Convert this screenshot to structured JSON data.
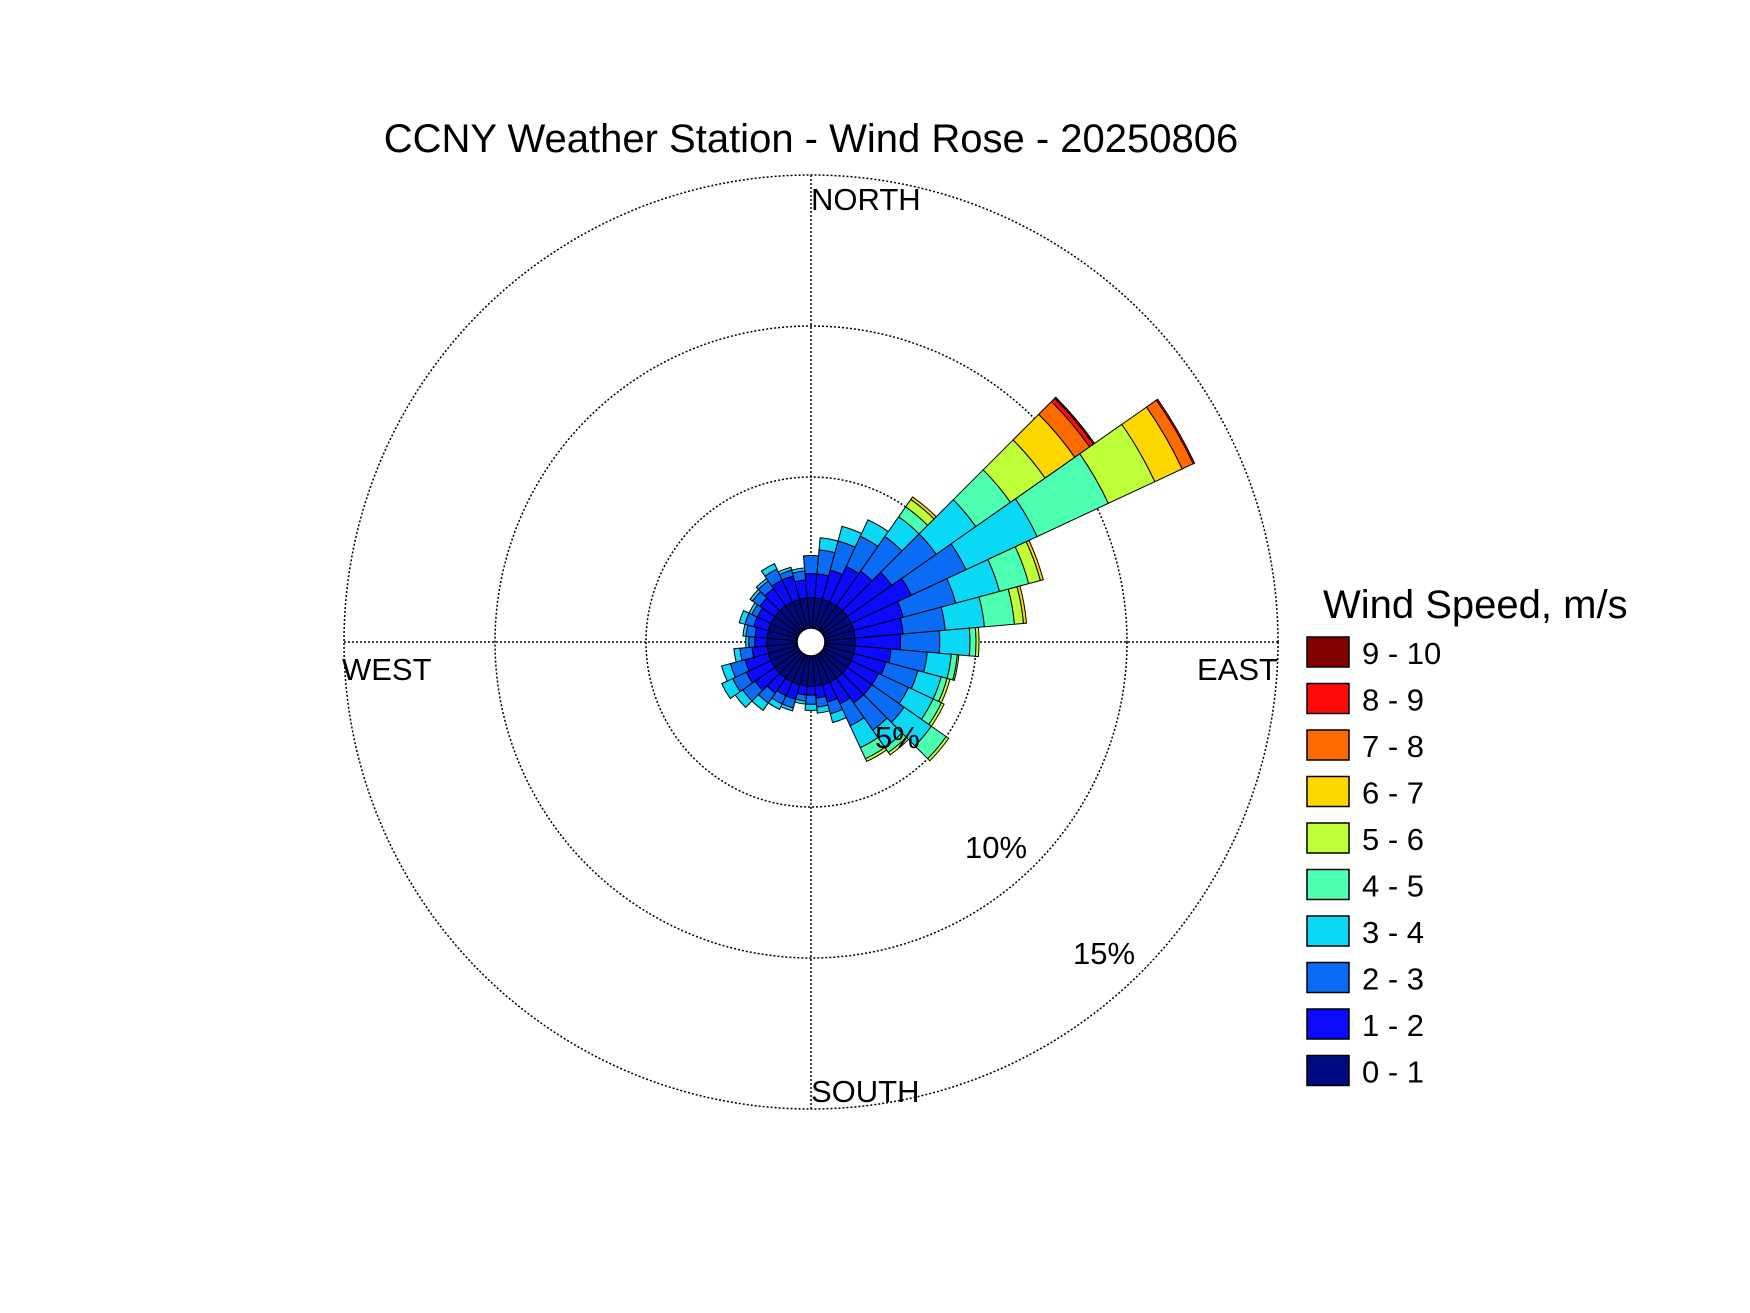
{
  "chart_data": {
    "type": "wind-rose",
    "title": "CCNY Weather Station - Wind Rose - 20250806",
    "directions": {
      "north": "NORTH",
      "east": "EAST",
      "south": "SOUTH",
      "west": "WEST"
    },
    "ring_labels": [
      "5%",
      "10%",
      "15%"
    ],
    "ring_values": [
      5,
      10,
      15
    ],
    "rlim": [
      0,
      15
    ],
    "legend": {
      "title": "Wind Speed, m/s",
      "placement": "right",
      "bins": [
        {
          "label": "9 - 10",
          "color": "#800000"
        },
        {
          "label": "8 - 9",
          "color": "#ff0a0a"
        },
        {
          "label": "7 - 8",
          "color": "#ff6a00"
        },
        {
          "label": "6 - 7",
          "color": "#ffd700"
        },
        {
          "label": "5 - 6",
          "color": "#bfff3a"
        },
        {
          "label": "4 - 5",
          "color": "#4dffb0"
        },
        {
          "label": "3 - 4",
          "color": "#0ad8f5"
        },
        {
          "label": "2 - 3",
          "color": "#0a6cf5"
        },
        {
          "label": "1 - 2",
          "color": "#0a0aff"
        },
        {
          "label": "0 - 1",
          "color": "#000a80"
        }
      ]
    },
    "speed_bins": [
      "0 - 1",
      "1 - 2",
      "2 - 3",
      "3 - 4",
      "4 - 5",
      "5 - 6",
      "6 - 7",
      "7 - 8",
      "8 - 9",
      "9 - 10"
    ],
    "sector_width_deg": 10,
    "sectors": [
      {
        "direction": 0,
        "cumulative": [
          1.0,
          1.8,
          2.4
        ]
      },
      {
        "direction": 10,
        "cumulative": [
          1.0,
          1.8,
          2.6,
          3.0
        ]
      },
      {
        "direction": 20,
        "cumulative": [
          1.0,
          2.0,
          3.0,
          3.5
        ]
      },
      {
        "direction": 30,
        "cumulative": [
          1.0,
          2.3,
          3.4,
          4.0
        ]
      },
      {
        "direction": 40,
        "cumulative": [
          1.0,
          2.4,
          3.8,
          4.6,
          5.0,
          5.3,
          5.4
        ]
      },
      {
        "direction": 50,
        "cumulative": [
          1.0,
          2.8,
          4.6,
          6.2,
          7.6,
          9.0,
          10.2,
          10.8,
          10.95,
          11.0
        ]
      },
      {
        "direction": 60,
        "cumulative": [
          1.0,
          3.2,
          5.2,
          7.8,
          10.4,
          12.1,
          13.1,
          13.5,
          13.55
        ]
      },
      {
        "direction": 70,
        "cumulative": [
          1.0,
          2.7,
          4.5,
          6.0,
          7.0,
          7.4,
          7.5
        ]
      },
      {
        "direction": 80,
        "cumulative": [
          1.0,
          2.6,
          4.0,
          5.3,
          6.3,
          6.6,
          6.7
        ]
      },
      {
        "direction": 90,
        "cumulative": [
          1.0,
          2.5,
          3.8,
          4.8,
          5.0,
          5.1
        ]
      },
      {
        "direction": 100,
        "cumulative": [
          1.0,
          2.2,
          3.4,
          4.2,
          4.4,
          4.45
        ]
      },
      {
        "direction": 110,
        "cumulative": [
          1.0,
          2.1,
          3.2,
          4.0,
          4.2,
          4.3
        ]
      },
      {
        "direction": 120,
        "cumulative": [
          1.0,
          2.0,
          3.1,
          4.0,
          4.3,
          4.4
        ]
      },
      {
        "direction": 130,
        "cumulative": [
          1.0,
          2.0,
          3.3,
          4.4,
          5.0,
          5.1
        ]
      },
      {
        "direction": 140,
        "cumulative": [
          1.0,
          2.0,
          3.1,
          3.8,
          4.0,
          4.1
        ]
      },
      {
        "direction": 150,
        "cumulative": [
          1.0,
          1.8,
          2.6,
          3.4,
          3.8,
          3.9
        ]
      },
      {
        "direction": 160,
        "cumulative": [
          1.0,
          1.6,
          2.0,
          2.3
        ]
      },
      {
        "direction": 170,
        "cumulative": [
          1.0,
          1.4,
          1.7,
          1.9
        ]
      },
      {
        "direction": 180,
        "cumulative": [
          1.0,
          1.3,
          1.6,
          1.8
        ]
      },
      {
        "direction": 190,
        "cumulative": [
          1.0,
          1.3,
          1.5,
          1.6
        ]
      },
      {
        "direction": 200,
        "cumulative": [
          1.0,
          1.5,
          1.8,
          1.9
        ]
      },
      {
        "direction": 210,
        "cumulative": [
          1.0,
          1.5,
          1.8,
          2.0
        ]
      },
      {
        "direction": 220,
        "cumulative": [
          1.0,
          1.6,
          2.0,
          2.3
        ]
      },
      {
        "direction": 230,
        "cumulative": [
          1.0,
          1.8,
          2.3,
          2.6
        ]
      },
      {
        "direction": 240,
        "cumulative": [
          1.0,
          1.9,
          2.4,
          2.8
        ]
      },
      {
        "direction": 250,
        "cumulative": [
          1.0,
          1.8,
          2.3,
          2.6
        ]
      },
      {
        "direction": 260,
        "cumulative": [
          1.0,
          1.5,
          1.9,
          2.1
        ]
      },
      {
        "direction": 270,
        "cumulative": [
          1.0,
          1.4,
          1.6,
          1.7
        ]
      },
      {
        "direction": 280,
        "cumulative": [
          1.0,
          1.4,
          1.7,
          1.8
        ]
      },
      {
        "direction": 290,
        "cumulative": [
          1.0,
          1.5,
          1.8,
          2.0
        ]
      },
      {
        "direction": 300,
        "cumulative": [
          1.0,
          1.5,
          1.7,
          1.8
        ]
      },
      {
        "direction": 310,
        "cumulative": [
          1.0,
          1.6,
          1.9,
          2.0
        ]
      },
      {
        "direction": 320,
        "cumulative": [
          1.0,
          1.7,
          2.0,
          2.1
        ]
      },
      {
        "direction": 330,
        "cumulative": [
          1.0,
          1.8,
          2.2,
          2.4
        ]
      },
      {
        "direction": 340,
        "cumulative": [
          1.0,
          1.8,
          2.0,
          2.1
        ]
      },
      {
        "direction": 350,
        "cumulative": [
          1.0,
          1.6,
          1.9,
          2.0
        ]
      }
    ]
  }
}
